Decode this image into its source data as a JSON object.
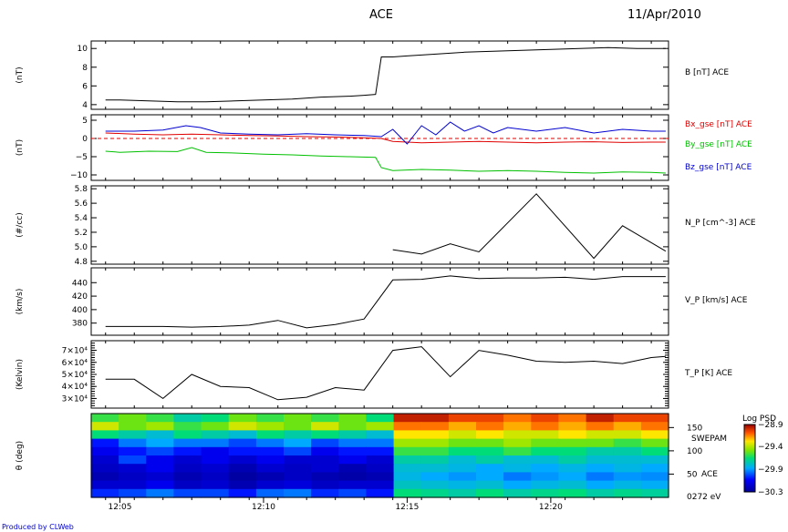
{
  "header": {
    "mission": "ACE",
    "date": "11/Apr/2010"
  },
  "footer": {
    "credit": "Produced by CLWeb"
  },
  "chart_data": [
    {
      "type": "line",
      "unit": "(nT)",
      "legend": [
        {
          "name": "B [nT] ACE",
          "color": "#000000"
        }
      ],
      "ylim": [
        3.5,
        10.8
      ],
      "yticks": [
        4,
        6,
        8,
        10
      ],
      "ytick_labels": [
        "4",
        "6",
        "8",
        "10"
      ],
      "series": [
        {
          "name": "B [nT] ACE",
          "color": "#000000",
          "x": [
            0,
            0.5,
            1.5,
            2.5,
            3.5,
            4.5,
            5.5,
            6.5,
            7.5,
            8.5,
            9.0,
            9.4,
            9.6,
            10.0,
            10.5,
            11.5,
            12.5,
            13.5,
            14.5,
            15.5,
            16.5,
            17.5,
            18.5,
            19.5
          ],
          "y": [
            4.5,
            4.5,
            4.4,
            4.3,
            4.3,
            4.4,
            4.5,
            4.6,
            4.8,
            4.9,
            5.0,
            5.1,
            9.1,
            9.1,
            9.2,
            9.4,
            9.6,
            9.7,
            9.8,
            9.9,
            10.0,
            10.1,
            10.0,
            10.0
          ]
        }
      ]
    },
    {
      "type": "line",
      "unit": "(nT)",
      "legend": [
        {
          "name": "Bx_gse [nT] ACE",
          "color": "#e00000"
        },
        {
          "name": "By_gse [nT] ACE",
          "color": "#00c000"
        },
        {
          "name": "Bz_gse [nT] ACE",
          "color": "#0000d0"
        }
      ],
      "ylim": [
        -11.5,
        6.5
      ],
      "yticks": [
        5,
        0,
        -5,
        -10
      ],
      "ytick_labels": [
        "5",
        "0",
        "−5",
        "−10"
      ],
      "series": [
        {
          "name": "Bx_gse [nT] ACE",
          "color": "#e00000",
          "x": [
            0,
            1,
            2,
            3,
            4,
            5,
            6,
            7,
            8,
            9,
            9.6,
            10,
            11,
            12,
            13,
            14,
            15,
            16,
            17,
            18,
            19,
            19.5
          ],
          "y": [
            1.5,
            1.2,
            1.0,
            1.2,
            1.0,
            0.8,
            0.7,
            0.5,
            0.4,
            0.2,
            0.0,
            -0.8,
            -1.2,
            -1.0,
            -0.8,
            -1.0,
            -1.2,
            -1.0,
            -0.9,
            -1.1,
            -1.0,
            -1.0
          ]
        },
        {
          "name": "By_gse [nT] ACE",
          "color": "#00c000",
          "x": [
            0,
            0.5,
            1.5,
            2.5,
            3.0,
            3.5,
            4.5,
            5.5,
            6.5,
            7.5,
            8.5,
            9.4,
            9.6,
            10.0,
            11,
            12,
            13,
            14,
            15,
            16,
            17,
            18,
            19,
            19.5
          ],
          "y": [
            -3.5,
            -3.8,
            -3.5,
            -3.6,
            -2.5,
            -3.8,
            -4.0,
            -4.3,
            -4.5,
            -4.8,
            -5.0,
            -5.2,
            -8.0,
            -8.8,
            -8.5,
            -8.7,
            -9.0,
            -8.8,
            -9.0,
            -9.3,
            -9.5,
            -9.2,
            -9.3,
            -9.5
          ]
        },
        {
          "name": "Bz_gse [nT] ACE",
          "color": "#0000d0",
          "x": [
            0,
            1,
            2,
            2.8,
            3.3,
            4,
            5,
            6,
            7,
            8,
            9,
            9.6,
            10,
            10.5,
            11,
            11.5,
            12,
            12.5,
            13,
            13.5,
            14,
            15,
            16,
            17,
            18,
            19,
            19.5
          ],
          "y": [
            2.0,
            2.0,
            2.3,
            3.5,
            3.0,
            1.5,
            1.2,
            1.0,
            1.3,
            1.0,
            0.8,
            0.5,
            2.5,
            -1.5,
            3.5,
            1.0,
            4.5,
            2.0,
            3.5,
            1.5,
            3.0,
            2.0,
            3.0,
            1.5,
            2.5,
            2.0,
            2.0
          ]
        }
      ]
    },
    {
      "type": "line",
      "unit": "(#/cc)",
      "legend": [
        {
          "name": "N_P [cm^-3] ACE",
          "color": "#000000"
        }
      ],
      "ylim": [
        4.76,
        5.84
      ],
      "yticks": [
        4.8,
        5.0,
        5.2,
        5.4,
        5.6,
        5.8
      ],
      "ytick_labels": [
        "4.8",
        "5.0",
        "5.2",
        "5.4",
        "5.6",
        "5.8"
      ],
      "series": [
        {
          "name": "N_P [cm^-3] ACE",
          "color": "#000000",
          "x": [
            10,
            11,
            12,
            13,
            15,
            17,
            18,
            19.5
          ],
          "y": [
            4.96,
            4.9,
            5.04,
            4.93,
            5.73,
            4.84,
            5.29,
            4.94
          ]
        }
      ]
    },
    {
      "type": "line",
      "unit": "(km/s)",
      "legend": [
        {
          "name": "V_P [km/s] ACE",
          "color": "#000000"
        }
      ],
      "ylim": [
        362,
        462
      ],
      "yticks": [
        380,
        400,
        420,
        440
      ],
      "ytick_labels": [
        "380",
        "400",
        "420",
        "440"
      ],
      "series": [
        {
          "name": "V_P [km/s] ACE",
          "color": "#000000",
          "x": [
            0,
            1,
            2,
            3,
            4,
            5,
            6,
            7,
            8,
            9,
            10,
            11,
            12,
            13,
            14,
            15,
            16,
            17,
            18,
            19,
            19.5
          ],
          "y": [
            375,
            375,
            375,
            374,
            375,
            377,
            384,
            373,
            378,
            386,
            444,
            445,
            450,
            446,
            447,
            447,
            448,
            445,
            449,
            449,
            449
          ]
        }
      ]
    },
    {
      "type": "line",
      "unit": "(Kelvin)",
      "legend": [
        {
          "name": "T_P [K] ACE",
          "color": "#000000"
        }
      ],
      "ylim": [
        22000,
        78000
      ],
      "yticks": [
        30000,
        40000,
        50000,
        60000,
        70000
      ],
      "ytick_labels": [
        "3×10⁴",
        "4×10⁴",
        "5×10⁴",
        "6×10⁴",
        "7×10⁴"
      ],
      "series": [
        {
          "name": "T_P [K] ACE",
          "color": "#000000",
          "x": [
            0,
            1,
            2,
            3,
            4,
            5,
            6,
            7,
            8,
            9,
            10,
            11,
            12,
            13,
            14,
            15,
            16,
            17,
            18,
            19,
            19.5
          ],
          "y": [
            46000,
            46000,
            30000,
            50000,
            40000,
            39000,
            29000,
            31000,
            39000,
            37000,
            70000,
            73000,
            48000,
            70000,
            66000,
            61000,
            60000,
            61000,
            59000,
            64000,
            65000
          ]
        }
      ]
    },
    {
      "type": "heatmap",
      "unit": "θ (deg)",
      "instrument": [
        "SWEPAM",
        "ACE"
      ],
      "energy_label": "0272 eV",
      "colorbar": {
        "title": "Log PSD",
        "max": "−28.9",
        "ticks": [
          "−29.4",
          "−29.9"
        ],
        "min": "−30.3"
      },
      "ylim": [
        0,
        180
      ],
      "yticks": [
        150,
        100,
        50
      ],
      "ytick_labels": [
        "150",
        "100",
        "50"
      ],
      "xticks": [
        0.5,
        5.5,
        10.5,
        15.5
      ],
      "xtick_labels": [
        "12:05",
        "12:10",
        "12:15",
        "12:20"
      ],
      "rows": [
        [
          0.55,
          0.6,
          0.55,
          0.45,
          0.5,
          0.6,
          0.55,
          0.6,
          0.55,
          0.6,
          0.5,
          0.95,
          0.95,
          0.9,
          0.9,
          0.85,
          0.9,
          0.85,
          0.95,
          0.9,
          0.9
        ],
        [
          0.7,
          0.6,
          0.65,
          0.55,
          0.6,
          0.7,
          0.65,
          0.6,
          0.7,
          0.6,
          0.65,
          0.85,
          0.85,
          0.8,
          0.85,
          0.8,
          0.85,
          0.8,
          0.85,
          0.8,
          0.85
        ],
        [
          0.5,
          0.45,
          0.4,
          0.5,
          0.45,
          0.4,
          0.5,
          0.45,
          0.5,
          0.45,
          0.4,
          0.75,
          0.75,
          0.7,
          0.75,
          0.7,
          0.7,
          0.75,
          0.7,
          0.7,
          0.75
        ],
        [
          0.2,
          0.3,
          0.35,
          0.3,
          0.3,
          0.25,
          0.3,
          0.35,
          0.25,
          0.3,
          0.3,
          0.65,
          0.65,
          0.6,
          0.6,
          0.65,
          0.6,
          0.6,
          0.6,
          0.55,
          0.6
        ],
        [
          0.15,
          0.2,
          0.25,
          0.2,
          0.15,
          0.2,
          0.2,
          0.25,
          0.15,
          0.2,
          0.2,
          0.55,
          0.55,
          0.5,
          0.5,
          0.55,
          0.5,
          0.5,
          0.45,
          0.45,
          0.5
        ],
        [
          0.1,
          0.25,
          0.15,
          0.1,
          0.15,
          0.1,
          0.15,
          0.1,
          0.1,
          0.15,
          0.1,
          0.45,
          0.45,
          0.4,
          0.45,
          0.4,
          0.4,
          0.45,
          0.4,
          0.4,
          0.4
        ],
        [
          0.08,
          0.1,
          0.15,
          0.08,
          0.1,
          0.05,
          0.1,
          0.08,
          0.1,
          0.05,
          0.08,
          0.4,
          0.4,
          0.38,
          0.35,
          0.38,
          0.35,
          0.38,
          0.35,
          0.38,
          0.35
        ],
        [
          0.05,
          0.08,
          0.1,
          0.05,
          0.08,
          0.02,
          0.05,
          0.08,
          0.05,
          0.03,
          0.05,
          0.38,
          0.35,
          0.33,
          0.35,
          0.3,
          0.33,
          0.35,
          0.3,
          0.33,
          0.32
        ],
        [
          0.1,
          0.1,
          0.15,
          0.08,
          0.1,
          0.05,
          0.1,
          0.12,
          0.08,
          0.1,
          0.1,
          0.42,
          0.4,
          0.38,
          0.4,
          0.35,
          0.38,
          0.4,
          0.35,
          0.38,
          0.36
        ],
        [
          0.22,
          0.25,
          0.3,
          0.25,
          0.25,
          0.2,
          0.28,
          0.3,
          0.22,
          0.25,
          0.2,
          0.5,
          0.48,
          0.45,
          0.5,
          0.45,
          0.48,
          0.5,
          0.45,
          0.48,
          0.46
        ]
      ]
    }
  ],
  "x_axis": {
    "xmin": -0.5,
    "xmax": 19.6
  }
}
